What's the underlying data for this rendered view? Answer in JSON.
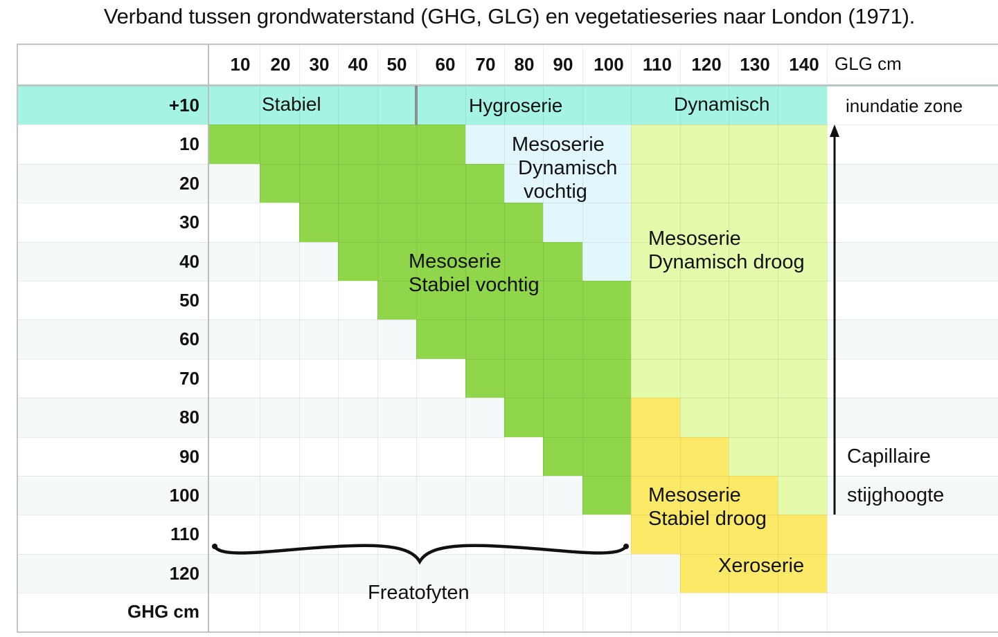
{
  "title": "Verband tussen grondwaterstand (GHG, GLG) en vegetatieseries naar London (1971).",
  "columns": [
    "10",
    "20",
    "30",
    "40",
    "50",
    "60",
    "70",
    "80",
    "90",
    "100",
    "110",
    "120",
    "130",
    "140"
  ],
  "columns_unit": "GLG cm",
  "rows": [
    "+10",
    "10",
    "20",
    "30",
    "40",
    "50",
    "60",
    "70",
    "80",
    "90",
    "100",
    "110",
    "120"
  ],
  "rows_unit": "GHG cm",
  "header_series": {
    "stabiel": "Stabiel",
    "hygroserie": "Hygroserie",
    "dynamisch": "Dynamisch",
    "inundatie": "inundatie zone"
  },
  "regions": {
    "meso_dyn_vochtig": [
      "Mesoserie",
      "Dynamisch",
      "vochtig"
    ],
    "meso_stab_vochtig": [
      "Mesoserie",
      "Stabiel vochtig"
    ],
    "meso_dyn_droog": [
      "Mesoserie",
      "Dynamisch droog"
    ],
    "meso_stab_droog": [
      "Mesoserie",
      "Stabiel droog"
    ],
    "xeroserie": "Xeroserie",
    "freatofyten": "Freatofyten"
  },
  "capillary": [
    "Capillaire",
    "stijghoogte"
  ],
  "colors": {
    "stabiel_vochtig": "#8fd64a",
    "dynamisch_vochtig": "#e2f7fb",
    "dynamisch_droog": "#e5fbac",
    "stabiel_droog_xero": "#fde968",
    "inundatie": "#a5f3e3",
    "grid": "#e3e3e3",
    "frame": "#c4c4c4"
  }
}
